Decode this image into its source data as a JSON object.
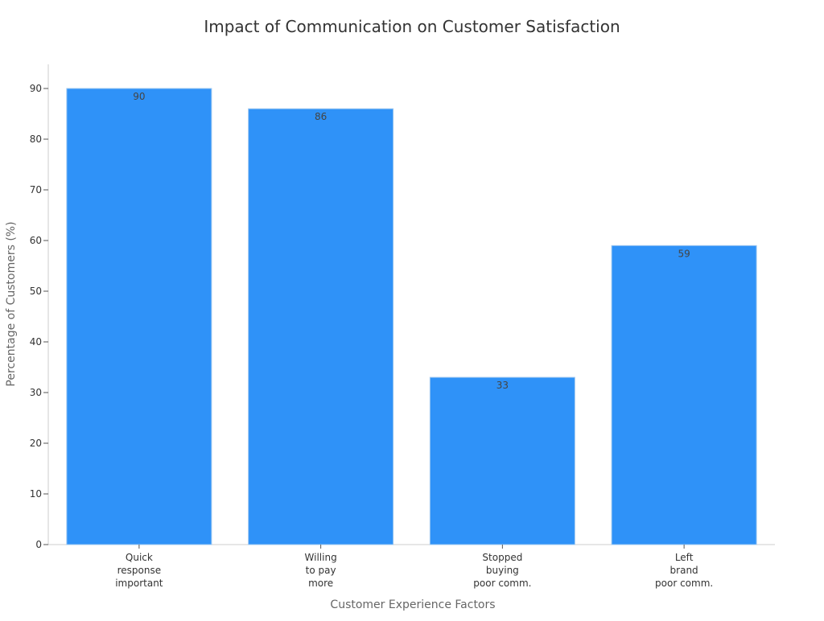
{
  "chart_data": {
    "type": "bar",
    "title": "Impact of Communication on Customer Satisfaction",
    "xlabel": "Customer Experience Factors",
    "ylabel": "Percentage of Customers (%)",
    "categories": [
      [
        "Quick",
        "response",
        "important"
      ],
      [
        "Willing",
        "to pay",
        "more"
      ],
      [
        "Stopped",
        "buying",
        "poor comm."
      ],
      [
        "Left",
        "brand",
        "poor comm."
      ]
    ],
    "values": [
      90,
      86,
      33,
      59
    ],
    "ylim": [
      0,
      95
    ],
    "yticks": [
      0,
      10,
      20,
      30,
      40,
      50,
      60,
      70,
      80,
      90
    ],
    "grid": false,
    "legend": "none",
    "colors": {
      "bar": "#2f92f8",
      "bar_edge": "#9ec8f0",
      "axis": "#cccccc",
      "tick": "#555555"
    }
  }
}
